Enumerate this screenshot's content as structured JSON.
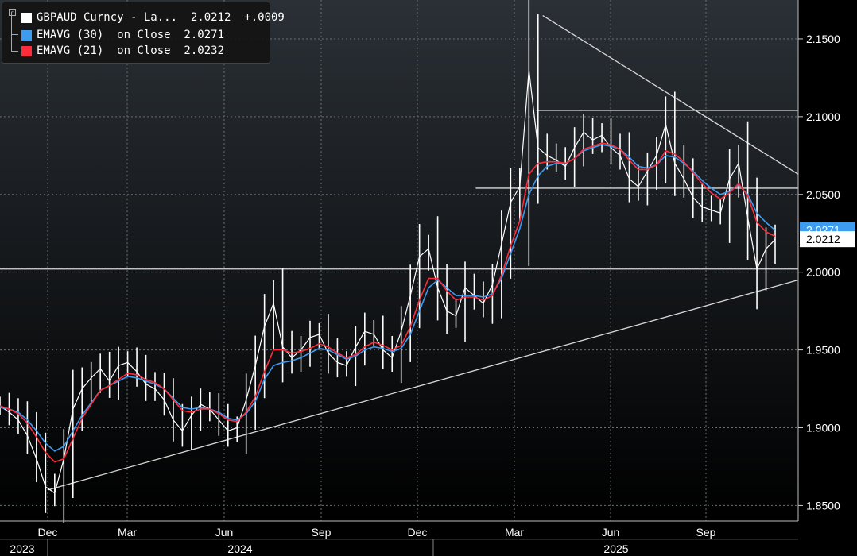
{
  "legend": {
    "row1": "GBPAUD Curncy - La...  2.0212  +.0009",
    "row2": "EMAVG (30)  on Close  2.0271",
    "row3": "EMAVG (21)  on Close  2.0232",
    "collapse_glyph": "-",
    "colors": {
      "price": "#ffffff",
      "ema30": "#3d9bf0",
      "ema21": "#ff2d3c"
    }
  },
  "price_tags": {
    "ema30": "2.0271",
    "last": "2.0212"
  },
  "chart_data": {
    "type": "line",
    "ylim": [
      1.84,
      2.175
    ],
    "y_ticks": [
      "2.1500",
      "2.1000",
      "2.0500",
      "2.0000",
      "1.9500",
      "1.9000",
      "1.8500"
    ],
    "month_labels": [
      "Dec",
      "Mar",
      "Jun",
      "Sep",
      "Dec",
      "Mar",
      "Jun",
      "Sep"
    ],
    "year_labels": [
      "2023",
      "2024",
      "2025"
    ],
    "grid": true,
    "series": [
      {
        "name": "GBPAUD Curncy",
        "values": [
          1.914,
          1.91,
          1.905,
          1.895,
          1.88,
          1.862,
          1.858,
          1.88,
          1.912,
          1.925,
          1.932,
          1.938,
          1.93,
          1.94,
          1.942,
          1.936,
          1.928,
          1.925,
          1.918,
          1.905,
          1.898,
          1.908,
          1.915,
          1.912,
          1.905,
          1.898,
          1.9,
          1.918,
          1.94,
          1.965,
          1.98,
          1.952,
          1.945,
          1.95,
          1.958,
          1.96,
          1.948,
          1.942,
          1.94,
          1.952,
          1.962,
          1.96,
          1.95,
          1.945,
          1.962,
          1.985,
          2.01,
          2.015,
          1.99,
          1.975,
          1.972,
          1.99,
          1.985,
          1.98,
          1.992,
          2.018,
          2.045,
          2.055,
          2.13,
          2.08,
          2.075,
          2.072,
          2.068,
          2.08,
          2.09,
          2.085,
          2.088,
          2.08,
          2.075,
          2.06,
          2.055,
          2.065,
          2.075,
          2.095,
          2.07,
          2.06,
          2.048,
          2.042,
          2.04,
          2.038,
          2.06,
          2.07,
          2.035,
          2.002,
          2.015,
          2.021
        ]
      },
      {
        "name": "EMAVG (30) on Close",
        "values": [
          1.913,
          1.912,
          1.91,
          1.905,
          1.898,
          1.89,
          1.885,
          1.888,
          1.898,
          1.908,
          1.916,
          1.924,
          1.927,
          1.93,
          1.933,
          1.932,
          1.93,
          1.928,
          1.925,
          1.919,
          1.913,
          1.912,
          1.913,
          1.912,
          1.91,
          1.906,
          1.905,
          1.909,
          1.917,
          1.931,
          1.94,
          1.942,
          1.943,
          1.945,
          1.948,
          1.951,
          1.95,
          1.947,
          1.944,
          1.946,
          1.95,
          1.952,
          1.951,
          1.949,
          1.951,
          1.96,
          1.975,
          1.99,
          1.995,
          1.99,
          1.985,
          1.985,
          1.985,
          1.984,
          1.986,
          1.996,
          2.012,
          2.028,
          2.05,
          2.062,
          2.068,
          2.07,
          2.07,
          2.073,
          2.078,
          2.08,
          2.082,
          2.081,
          2.079,
          2.074,
          2.068,
          2.067,
          2.069,
          2.075,
          2.074,
          2.07,
          2.065,
          2.059,
          2.054,
          2.05,
          2.052,
          2.056,
          2.05,
          2.038,
          2.032,
          2.027
        ]
      },
      {
        "name": "EMAVG (21) on Close",
        "values": [
          1.914,
          1.912,
          1.909,
          1.903,
          1.894,
          1.884,
          1.878,
          1.88,
          1.893,
          1.906,
          1.915,
          1.924,
          1.927,
          1.931,
          1.935,
          1.934,
          1.931,
          1.929,
          1.925,
          1.918,
          1.911,
          1.91,
          1.912,
          1.912,
          1.909,
          1.905,
          1.904,
          1.91,
          1.92,
          1.936,
          1.95,
          1.95,
          1.948,
          1.949,
          1.951,
          1.954,
          1.952,
          1.948,
          1.945,
          1.947,
          1.952,
          1.955,
          1.953,
          1.95,
          1.953,
          1.965,
          1.982,
          1.996,
          1.996,
          1.988,
          1.982,
          1.984,
          1.984,
          1.982,
          1.985,
          1.998,
          2.017,
          2.033,
          2.063,
          2.07,
          2.071,
          2.071,
          2.07,
          2.073,
          2.079,
          2.081,
          2.083,
          2.082,
          2.079,
          2.072,
          2.066,
          2.066,
          2.069,
          2.078,
          2.076,
          2.071,
          2.064,
          2.057,
          2.051,
          2.047,
          2.051,
          2.057,
          2.049,
          2.032,
          2.026,
          2.023
        ]
      }
    ],
    "annotations": [
      {
        "type": "trendline",
        "from": [
          0.06,
          1.86
        ],
        "to": [
          1.0,
          1.995
        ]
      },
      {
        "type": "trendline",
        "from": [
          0.68,
          2.165
        ],
        "to": [
          1.0,
          2.063
        ]
      },
      {
        "type": "hline",
        "y": 2.104,
        "x_from": 0.672
      },
      {
        "type": "hline",
        "y": 2.054,
        "x_from": 0.596
      },
      {
        "type": "hline",
        "y": 2.002,
        "x_from": 0.0
      }
    ]
  }
}
